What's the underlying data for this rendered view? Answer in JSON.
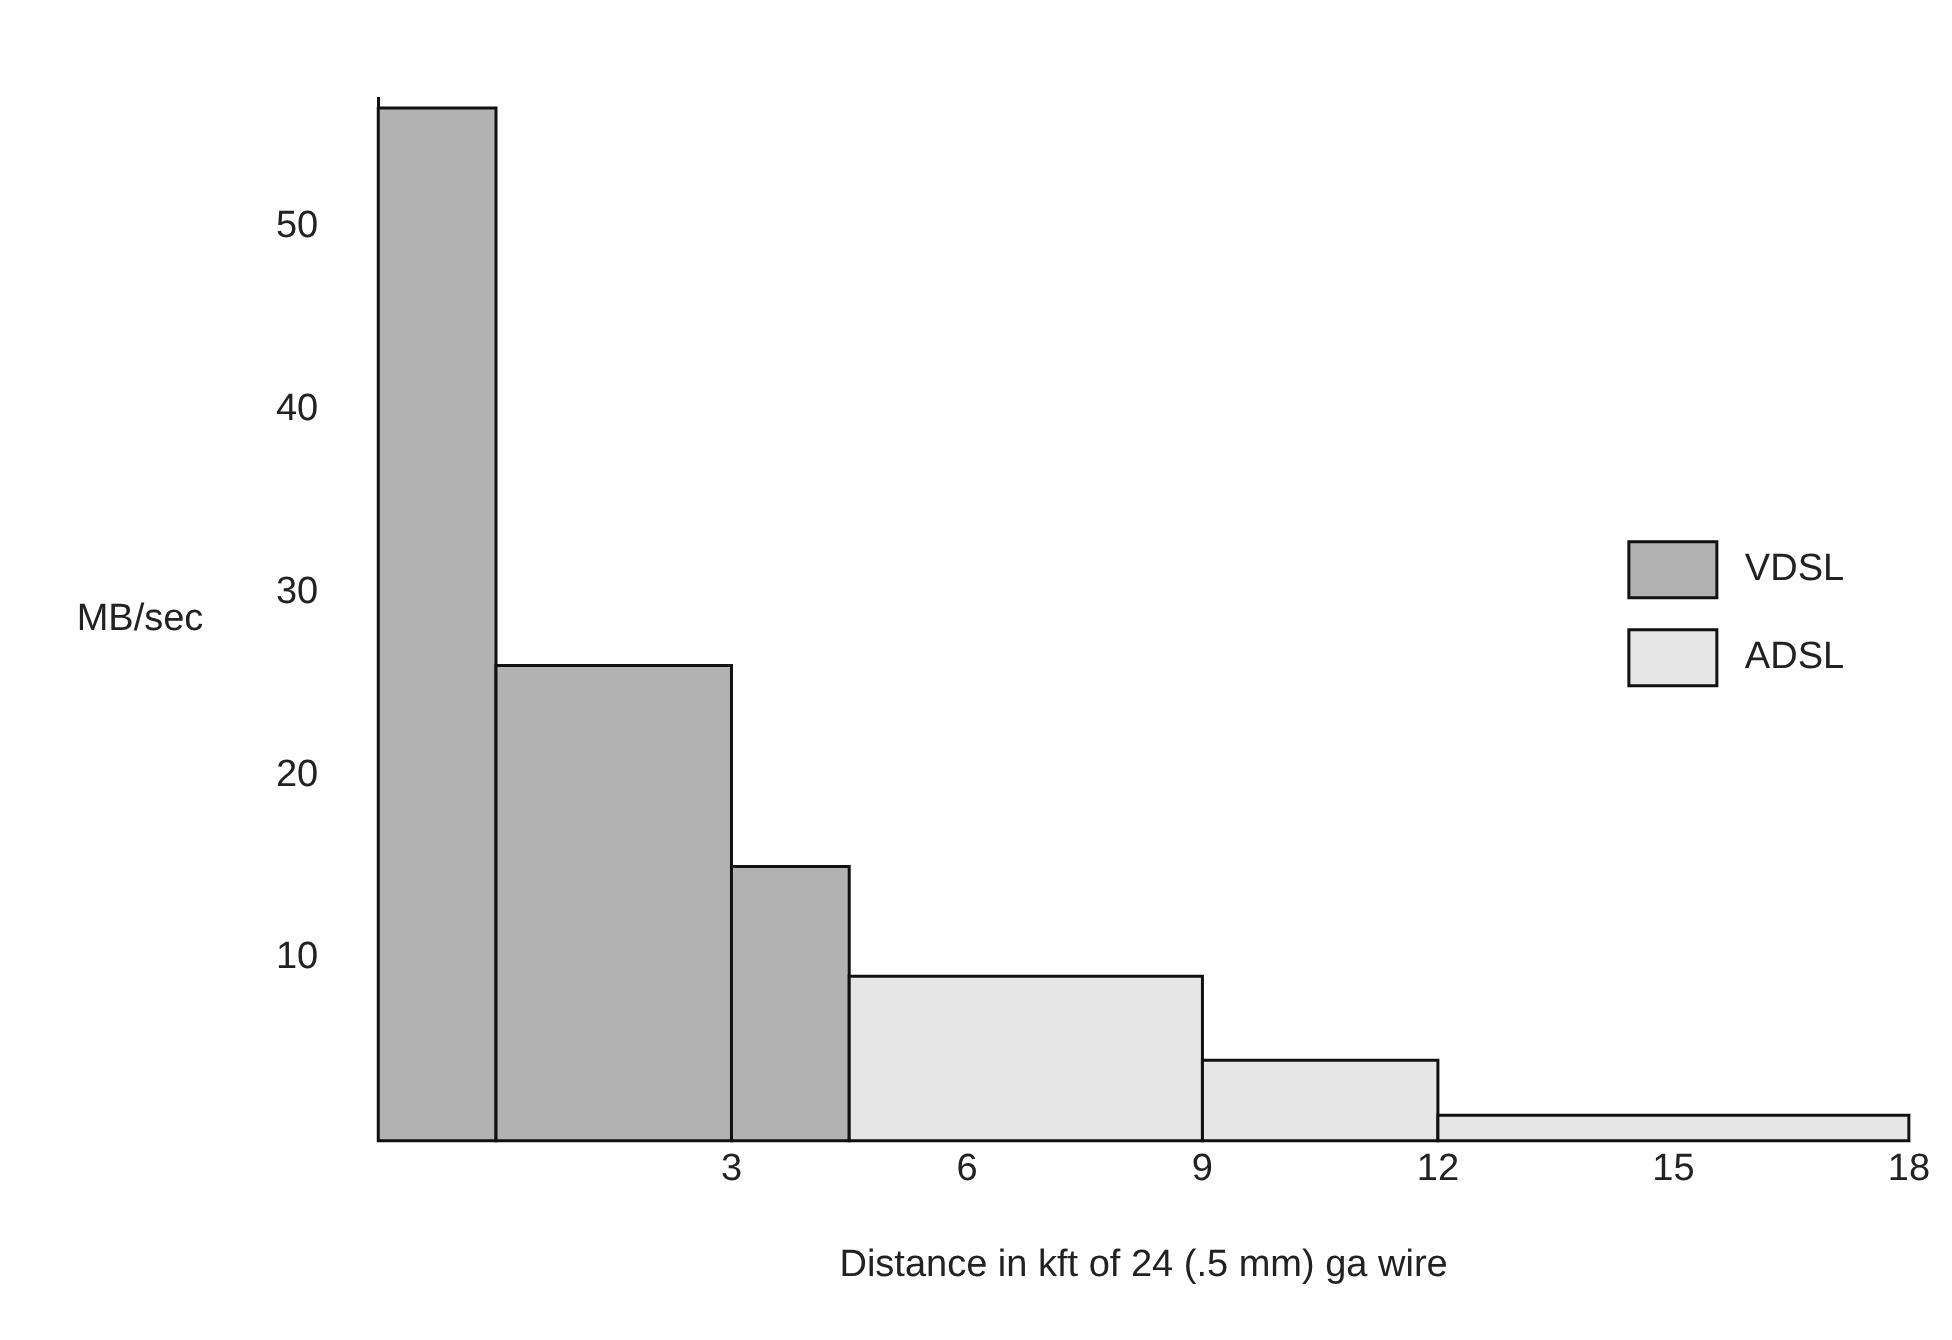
{
  "chart_data": {
    "type": "histogram",
    "xlabel": "Distance in kft of 24 (.5 mm) ga wire",
    "ylabel": "MB/sec",
    "bins": [
      -1.5,
      0,
      3,
      4.5,
      9,
      12,
      18
    ],
    "series": [
      {
        "name": "VDSL",
        "color": "#b2b2b2",
        "values": [
          56.5,
          26,
          15,
          null,
          null,
          null
        ]
      },
      {
        "name": "ADSL",
        "color": "#e6e6e6",
        "values": [
          null,
          null,
          null,
          9,
          4.4,
          1.4
        ]
      }
    ],
    "xlim": [
      -1.5,
      18
    ],
    "xticks": [
      3,
      6,
      9,
      12,
      15,
      18
    ],
    "ylim": [
      0,
      57
    ],
    "yticks": [
      10,
      20,
      30,
      40,
      50
    ],
    "grid": false,
    "legend": "right"
  }
}
